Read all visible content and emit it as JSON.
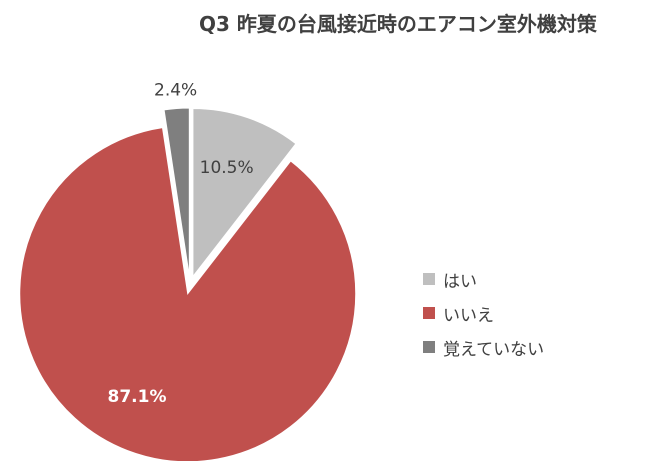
{
  "chart_data": {
    "type": "pie",
    "title": "Q3 昨夏の台風接近時のエアコン室外機対策",
    "categories": [
      "はい",
      "いいえ",
      "覚えていない"
    ],
    "values": [
      10.5,
      87.1,
      2.4
    ],
    "labels": [
      "10.5%",
      "87.1%",
      "2.4%"
    ],
    "colors": [
      "#bfbfbf",
      "#c0504d",
      "#7f7f7f"
    ],
    "exploded": true,
    "legend_position": "right"
  }
}
